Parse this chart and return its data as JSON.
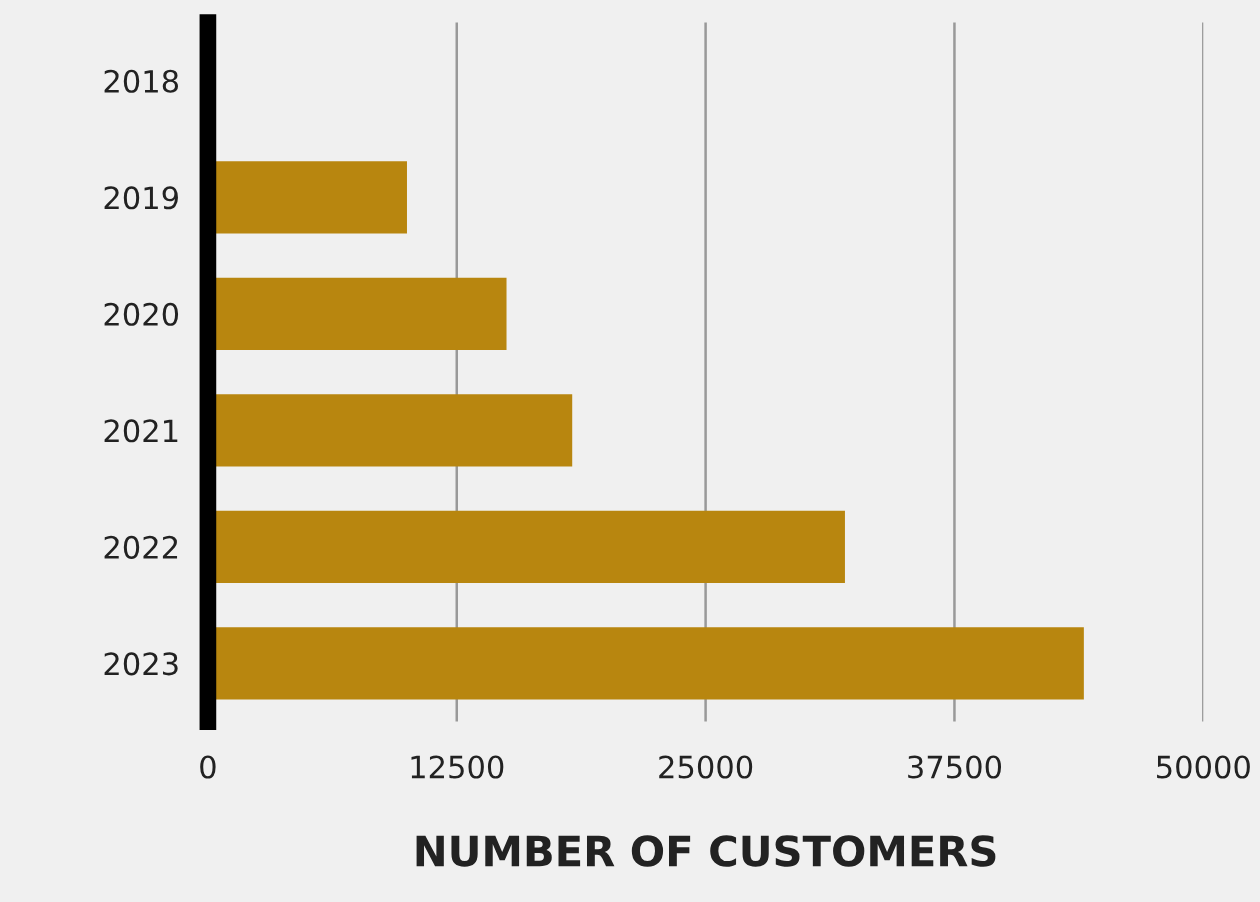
{
  "chart_data": {
    "type": "bar",
    "orientation": "horizontal",
    "xlabel": "NUMBER OF CUSTOMERS",
    "categories": [
      "2018",
      "2019",
      "2020",
      "2021",
      "2022",
      "2023"
    ],
    "values": [
      0,
      10000,
      15000,
      18300,
      32000,
      44000
    ],
    "color": "#b8860f",
    "xlim": [
      0,
      50000
    ],
    "xticks": [
      0,
      12500,
      25000,
      37500,
      50000
    ],
    "grid": "x"
  }
}
